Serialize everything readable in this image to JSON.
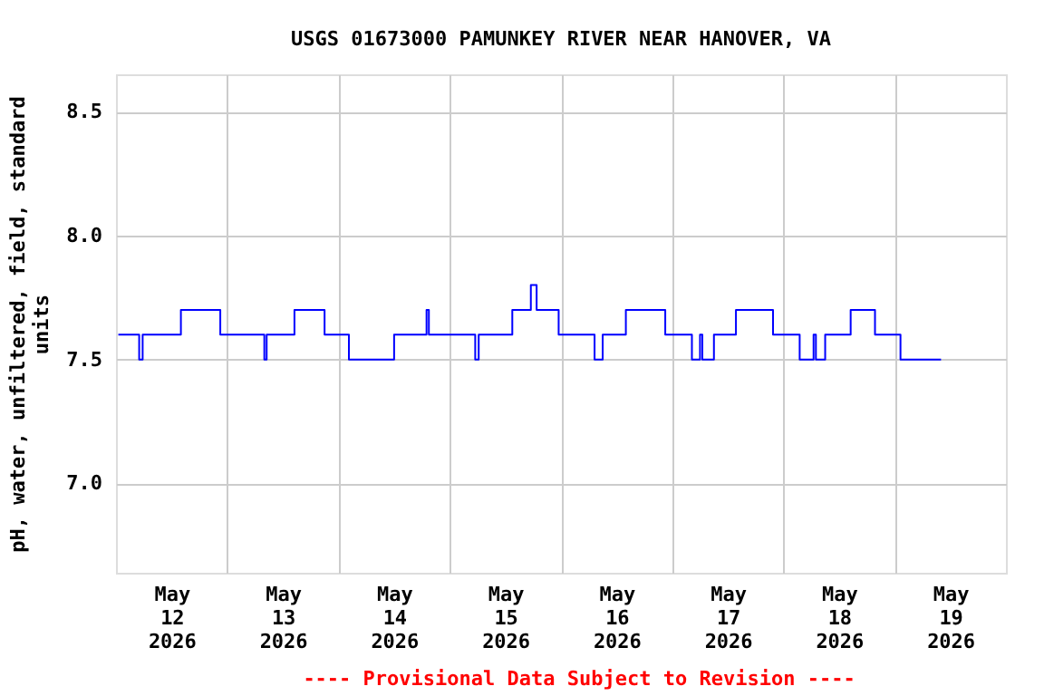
{
  "chart_data": {
    "type": "step",
    "title": "USGS 01673000 PAMUNKEY RIVER NEAR HANOVER, VA",
    "ylabel": "pH, water, unfiltered, field, standard units",
    "annotations": [
      "---- Provisional Data Subject to Revision ----"
    ],
    "x": [
      "2026-05-12T00:30",
      "2026-05-12T05:00",
      "2026-05-12T05:45",
      "2026-05-12T14:00",
      "2026-05-12T22:30",
      "2026-05-13T08:00",
      "2026-05-13T08:30",
      "2026-05-13T14:30",
      "2026-05-13T21:00",
      "2026-05-14T02:15",
      "2026-05-14T12:00",
      "2026-05-14T19:00",
      "2026-05-14T19:30",
      "2026-05-15T05:30",
      "2026-05-15T06:15",
      "2026-05-15T13:30",
      "2026-05-15T17:30",
      "2026-05-15T18:45",
      "2026-05-15T23:30",
      "2026-05-16T07:15",
      "2026-05-16T09:00",
      "2026-05-16T14:00",
      "2026-05-16T22:30",
      "2026-05-17T04:15",
      "2026-05-17T06:00",
      "2026-05-17T06:30",
      "2026-05-17T09:00",
      "2026-05-17T13:45",
      "2026-05-17T21:45",
      "2026-05-18T03:30",
      "2026-05-18T06:30",
      "2026-05-18T07:00",
      "2026-05-18T09:00",
      "2026-05-18T14:30",
      "2026-05-18T19:45",
      "2026-05-19T01:15",
      "2026-05-19T10:00"
    ],
    "series": [
      {
        "color": "#0000ff",
        "values": [
          7.6,
          7.5,
          7.6,
          7.7,
          7.6,
          7.5,
          7.6,
          7.7,
          7.6,
          7.5,
          7.6,
          7.7,
          7.6,
          7.5,
          7.6,
          7.7,
          7.8,
          7.7,
          7.6,
          7.5,
          7.6,
          7.7,
          7.6,
          7.5,
          7.6,
          7.5,
          7.6,
          7.7,
          7.6,
          7.5,
          7.6,
          7.5,
          7.6,
          7.7,
          7.6,
          7.5,
          7.5
        ]
      }
    ],
    "xlim": [
      "2026-05-12T00:00",
      "2026-05-20T00:00"
    ],
    "xticks": [
      {
        "value": "2026-05-12T12:00",
        "label": "May\n12\n2026"
      },
      {
        "value": "2026-05-13T00:00",
        "label": null
      },
      {
        "value": "2026-05-13T12:00",
        "label": "May\n13\n2026"
      },
      {
        "value": "2026-05-14T00:00",
        "label": null
      },
      {
        "value": "2026-05-14T12:00",
        "label": "May\n14\n2026"
      },
      {
        "value": "2026-05-15T00:00",
        "label": null
      },
      {
        "value": "2026-05-15T12:00",
        "label": "May\n15\n2026"
      },
      {
        "value": "2026-05-16T00:00",
        "label": null
      },
      {
        "value": "2026-05-16T12:00",
        "label": "May\n16\n2026"
      },
      {
        "value": "2026-05-17T00:00",
        "label": null
      },
      {
        "value": "2026-05-17T12:00",
        "label": "May\n17\n2026"
      },
      {
        "value": "2026-05-18T00:00",
        "label": null
      },
      {
        "value": "2026-05-18T12:00",
        "label": "May\n18\n2026"
      },
      {
        "value": "2026-05-19T00:00",
        "label": null
      },
      {
        "value": "2026-05-19T12:00",
        "label": "May\n19\n2026"
      }
    ],
    "ylim": [
      6.64,
      8.65
    ],
    "yticks": [
      {
        "value": 7.0,
        "label": "7.0"
      },
      7.5,
      {
        "value": 8.0,
        "label": "8.0"
      },
      8.5
    ],
    "grid": true,
    "marker": "none",
    "line_style": "solid"
  }
}
